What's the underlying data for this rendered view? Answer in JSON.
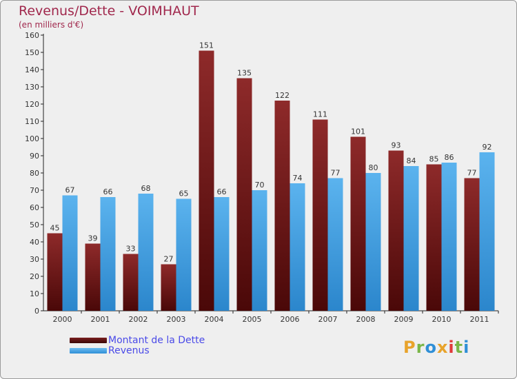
{
  "title": "Revenus/Dette - VOIMHAUT",
  "subtitle": "(en milliers d'€)",
  "logo": {
    "letters": [
      "P",
      "r",
      "o",
      "x",
      "i",
      "t",
      "i"
    ],
    "colors": [
      "#e8a32b",
      "#7ab648",
      "#2f8fd6",
      "#e8a32b",
      "#e03a3a",
      "#7ab648",
      "#2f8fd6"
    ]
  },
  "chart_data": {
    "type": "bar",
    "categories": [
      "2000",
      "2001",
      "2002",
      "2003",
      "2004",
      "2005",
      "2006",
      "2007",
      "2008",
      "2009",
      "2010",
      "2011"
    ],
    "series": [
      {
        "name": "Montant de la Dette",
        "color": "#7a1a1a",
        "values": [
          45,
          39,
          33,
          27,
          151,
          135,
          122,
          111,
          101,
          93,
          85,
          77
        ]
      },
      {
        "name": "Revenus",
        "color": "#4aa8e8",
        "values": [
          67,
          66,
          68,
          65,
          66,
          70,
          74,
          77,
          80,
          84,
          86,
          92
        ]
      }
    ],
    "ylim": [
      0,
      160
    ],
    "yticks": [
      "0",
      "10",
      "20",
      "30",
      "40",
      "50",
      "60",
      "70",
      "80",
      "90",
      "100",
      "110",
      "120",
      "130",
      "140",
      "150",
      "160"
    ],
    "grid": false
  }
}
